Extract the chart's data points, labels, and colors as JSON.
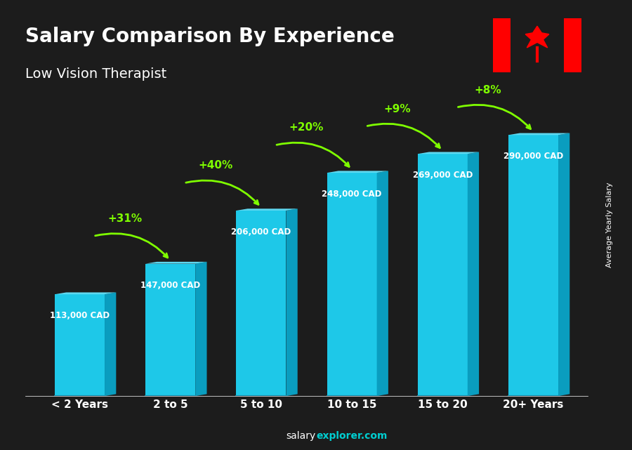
{
  "title": "Salary Comparison By Experience",
  "subtitle": "Low Vision Therapist",
  "categories": [
    "< 2 Years",
    "2 to 5",
    "5 to 10",
    "10 to 15",
    "15 to 20",
    "20+ Years"
  ],
  "values": [
    113000,
    147000,
    206000,
    248000,
    269000,
    290000
  ],
  "labels": [
    "113,000 CAD",
    "147,000 CAD",
    "206,000 CAD",
    "248,000 CAD",
    "269,000 CAD",
    "290,000 CAD"
  ],
  "pct_labels": [
    "+31%",
    "+40%",
    "+20%",
    "+9%",
    "+8%"
  ],
  "bar_color_face": "#00BFFF",
  "bar_color_top": "#00AAEE",
  "bar_color_side": "#0080BB",
  "background_color": "#1a1a2e",
  "text_color": "#ffffff",
  "green_color": "#7FFF00",
  "ylabel": "Average Yearly Salary",
  "footer": "salaryexplorer.com",
  "bar_width": 0.55,
  "ylim": [
    0,
    340000
  ]
}
